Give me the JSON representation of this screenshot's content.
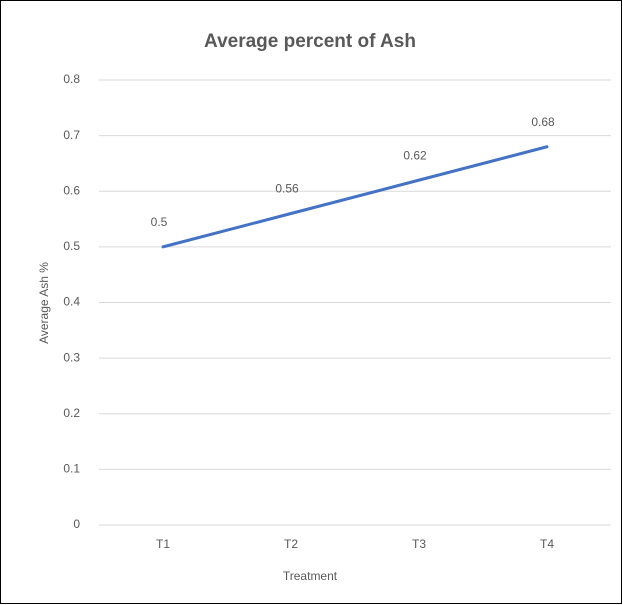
{
  "chart_data": {
    "type": "line",
    "title": "Average percent of Ash",
    "categories": [
      "T1",
      "T2",
      "T3",
      "T4"
    ],
    "values": [
      0.5,
      0.56,
      0.62,
      0.68
    ],
    "color": "#4472c4",
    "x_label": "Treatment",
    "y_label": "Average Ash %",
    "ylim": [
      0,
      0.8
    ],
    "yticks": [
      0,
      0.1,
      0.2,
      0.3,
      0.4,
      0.5,
      0.6,
      0.7,
      0.8
    ],
    "grid": true
  }
}
